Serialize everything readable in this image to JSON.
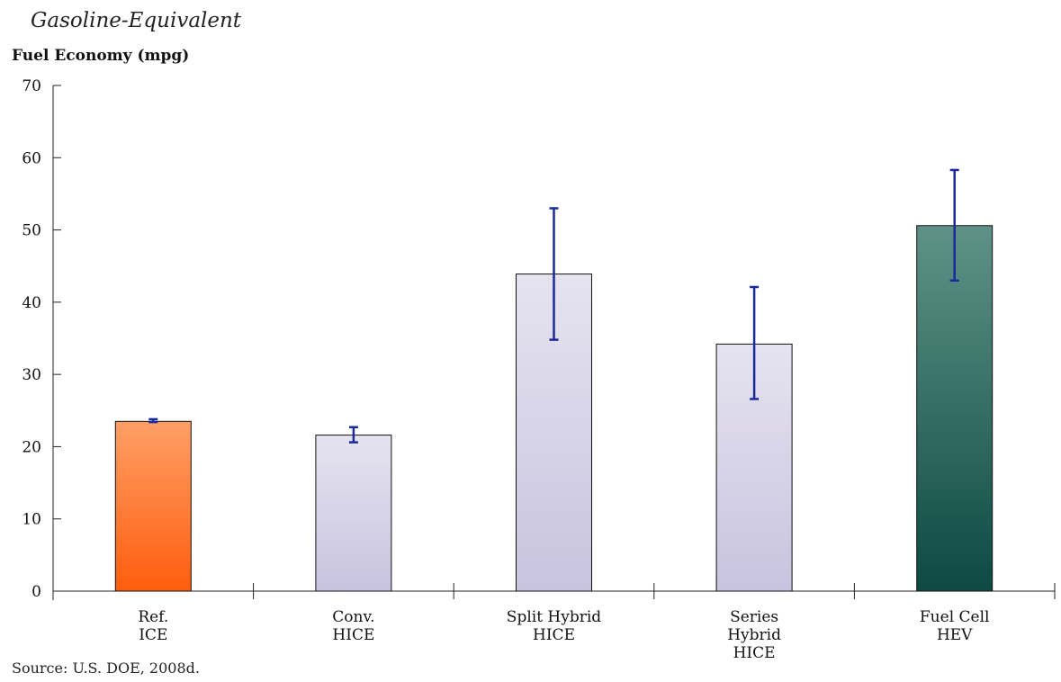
{
  "chart_data": {
    "type": "bar",
    "title": "",
    "subtitle": "Gasoline-Equivalent",
    "ylabel": "Fuel Economy (mpg)",
    "xlabel": "",
    "ylim": [
      0,
      70
    ],
    "yticks": [
      0,
      10,
      20,
      30,
      40,
      50,
      60,
      70
    ],
    "grid": false,
    "categories": [
      {
        "label": [
          "Ref.",
          "ICE"
        ],
        "value": 23.5,
        "err_low": 23.4,
        "err_high": 23.8,
        "color": "orange"
      },
      {
        "label": [
          "Conv.",
          "HICE"
        ],
        "value": 21.6,
        "err_low": 20.6,
        "err_high": 22.7,
        "color": "lavender"
      },
      {
        "label": [
          "Split Hybrid",
          "HICE"
        ],
        "value": 43.9,
        "err_low": 34.8,
        "err_high": 53.0,
        "color": "lavender"
      },
      {
        "label": [
          "Series",
          "Hybrid",
          "HICE"
        ],
        "value": 34.2,
        "err_low": 26.6,
        "err_high": 42.1,
        "color": "lavender"
      },
      {
        "label": [
          "Fuel Cell",
          "HEV"
        ],
        "value": 50.6,
        "err_low": 43.0,
        "err_high": 58.3,
        "color": "teal"
      }
    ],
    "colors": {
      "orange_top": "#ff9f66",
      "orange_bottom": "#ff5d0e",
      "lavender_top": "#e6e3f0",
      "lavender_bottom": "#c8c3df",
      "teal_top": "#5e9287",
      "teal_bottom": "#0d4a42",
      "error_bar": "#1a2a9a",
      "axis": "#222222"
    }
  },
  "source": "Source:  U.S. DOE, 2008d."
}
